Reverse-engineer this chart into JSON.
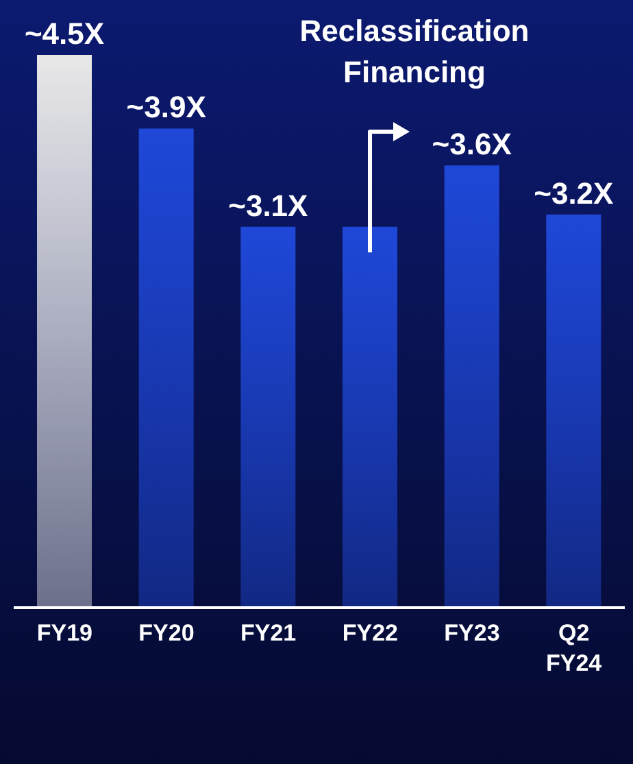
{
  "chart_data": {
    "type": "bar",
    "categories": [
      "FY19",
      "FY20",
      "FY21",
      "FY22",
      "FY23",
      "Q2 FY24"
    ],
    "values": [
      4.5,
      3.9,
      3.1,
      3.1,
      3.6,
      3.2
    ],
    "value_labels": [
      "~4.5X",
      "~3.9X",
      "~3.1X",
      null,
      "~3.6X",
      "~3.2X"
    ],
    "colors": [
      "#e8e8e8",
      "#1f48d8",
      "#1f48d8",
      "#1f48d8",
      "#1f48d8",
      "#1f48d8"
    ],
    "annotations": [
      "Reclassification Financing"
    ]
  }
}
